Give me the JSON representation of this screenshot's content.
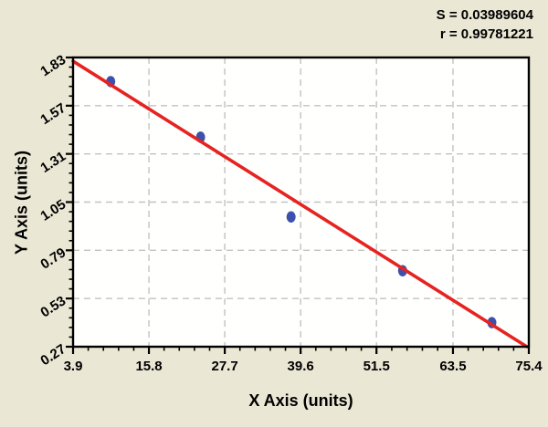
{
  "chart_data": {
    "type": "scatter",
    "xlabel": "X Axis (units)",
    "ylabel": "Y Axis (units)",
    "xlim": [
      3.9,
      75.4
    ],
    "ylim": [
      0.27,
      1.83
    ],
    "x_ticks": [
      3.9,
      15.8,
      27.7,
      39.6,
      51.5,
      63.5,
      75.4
    ],
    "y_ticks": [
      0.27,
      0.53,
      0.79,
      1.05,
      1.31,
      1.57,
      1.83
    ],
    "minor_subdivisions": 5,
    "grid": true,
    "legend_position": "none",
    "annotations": [
      "S = 0.03989604",
      "r = 0.99781221"
    ],
    "points": [
      {
        "x": 9.8,
        "y": 1.7
      },
      {
        "x": 23.9,
        "y": 1.4
      },
      {
        "x": 38.1,
        "y": 0.97
      },
      {
        "x": 55.6,
        "y": 0.68
      },
      {
        "x": 69.6,
        "y": 0.4
      }
    ],
    "fit_line": {
      "x1": 3.9,
      "y1": 1.81,
      "x2": 75.1,
      "y2": 0.27
    },
    "marker": "ellipse"
  },
  "colors": {
    "background": "#eae7d4",
    "plot_background": "#fffffd",
    "fit_line": "#e62320",
    "marker": "#3b51ad",
    "grid": "#c3c2bf",
    "axis": "#000000",
    "text": "#000000"
  }
}
